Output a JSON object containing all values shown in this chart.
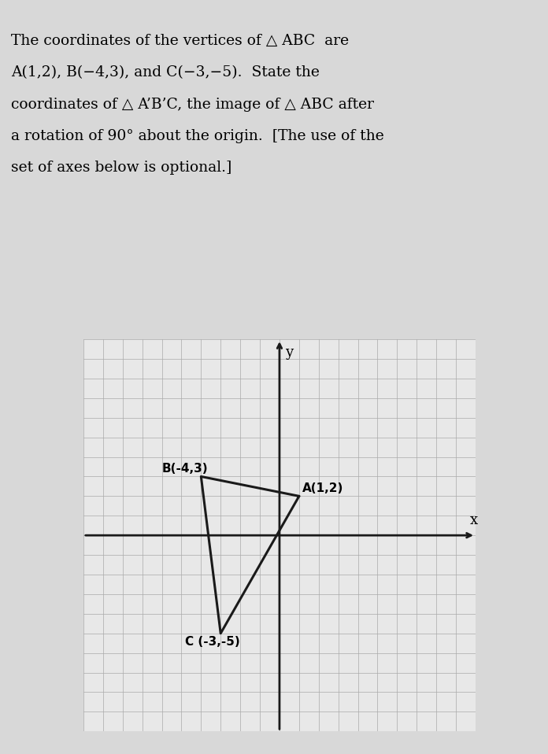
{
  "title_lines": [
    "The coordinates of the vertices of △ ABC  are",
    "A(1,2), B(−4,3), and C(−3,−5).  State the",
    "coordinates of △ A’B’C, the image of △ ABC after",
    "a rotation of 90° about the origin.  [The use of the",
    "set of axes below is optional.]"
  ],
  "vertices": {
    "A": [
      1,
      2
    ],
    "B": [
      -4,
      3
    ],
    "C": [
      -3,
      -5
    ]
  },
  "vertex_labels": {
    "A": "A(1,2)",
    "B": "B(-4,3)",
    "C": "C (-3,-5)"
  },
  "label_offsets": {
    "A": [
      0.15,
      0.2
    ],
    "B": [
      -2.0,
      0.2
    ],
    "C": [
      -1.8,
      -0.6
    ]
  },
  "axis_range": [
    -10,
    10
  ],
  "grid_minor_step": 1,
  "background_color": "#d8d8d8",
  "plot_background_color": "#e8e8e8",
  "triangle_color": "#1a1a1a",
  "triangle_linewidth": 2.2,
  "axis_color": "#1a1a1a",
  "label_fontsize": 11,
  "title_fontsize": 13.5,
  "grid_color": "#aaaaaa",
  "grid_linewidth": 0.5
}
